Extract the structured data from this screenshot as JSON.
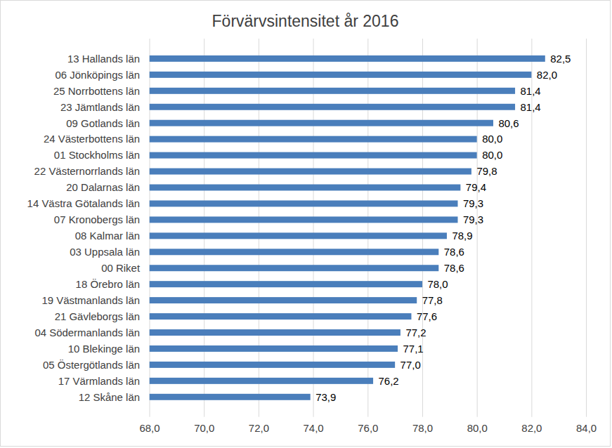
{
  "chart_data": {
    "type": "bar",
    "title": "Förvärvsintensitet år 2016",
    "orientation": "horizontal",
    "categories": [
      "13 Hallands län",
      "06 Jönköpings län",
      "25 Norrbottens län",
      "23 Jämtlands län",
      "09 Gotlands län",
      "24 Västerbottens län",
      "01 Stockholms län",
      "22 Västernorrlands län",
      "20 Dalarnas län",
      "14 Västra Götalands län",
      "07 Kronobergs län",
      "08 Kalmar län",
      "03 Uppsala län",
      "00 Riket",
      "18 Örebro län",
      "19 Västmanlands län",
      "21 Gävleborgs län",
      "04 Södermanlands län",
      "10 Blekinge län",
      "05 Östergötlands län",
      "17 Värmlands län",
      "12 Skåne län"
    ],
    "values": [
      82.5,
      82.0,
      81.4,
      81.4,
      80.6,
      80.0,
      80.0,
      79.8,
      79.4,
      79.3,
      79.3,
      78.9,
      78.6,
      78.6,
      78.0,
      77.8,
      77.6,
      77.2,
      77.1,
      77.0,
      76.2,
      73.9
    ],
    "value_labels": [
      "82,5",
      "82,0",
      "81,4",
      "81,4",
      "80,6",
      "80,0",
      "80,0",
      "79,8",
      "79,4",
      "79,3",
      "79,3",
      "78,9",
      "78,6",
      "78,6",
      "78,0",
      "77,8",
      "77,6",
      "77,2",
      "77,1",
      "77,0",
      "76,2",
      "73,9"
    ],
    "color": "#4a7ebb",
    "xlim": [
      68,
      84
    ],
    "xticks": [
      {
        "value": 68,
        "label": "68,0"
      },
      {
        "value": 70,
        "label": "70,0"
      },
      {
        "value": 72,
        "label": "72,0"
      },
      {
        "value": 74,
        "label": "74,0"
      },
      {
        "value": 76,
        "label": "76,0"
      },
      {
        "value": 78,
        "label": "78,0"
      },
      {
        "value": 80,
        "label": "80,0"
      },
      {
        "value": 82,
        "label": "82,0"
      },
      {
        "value": 84,
        "label": "84,0"
      }
    ],
    "grid": true,
    "data_labels": true
  }
}
